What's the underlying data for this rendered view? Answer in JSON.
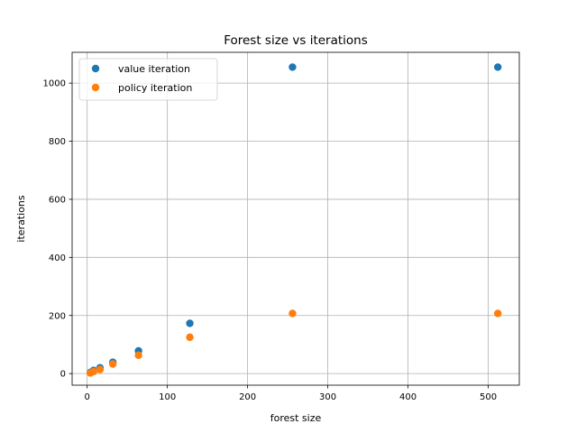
{
  "chart_data": {
    "type": "scatter",
    "title": "Forest size vs iterations",
    "xlabel": "forest size",
    "ylabel": "iterations",
    "xlim": [
      -18.75,
      538.75
    ],
    "ylim": [
      -40,
      1106
    ],
    "xticks": [
      0,
      100,
      200,
      300,
      400,
      500
    ],
    "yticks": [
      0,
      200,
      400,
      600,
      800,
      1000
    ],
    "grid": true,
    "legend_position": "upper-left",
    "series": [
      {
        "name": "value iteration",
        "color": "#1f77b4",
        "x": [
          4,
          8,
          16,
          32,
          64,
          128,
          256,
          512
        ],
        "y": [
          4,
          11,
          20,
          39,
          78,
          173,
          1055,
          1055
        ]
      },
      {
        "name": "policy iteration",
        "color": "#ff7f0e",
        "x": [
          4,
          8,
          16,
          32,
          64,
          128,
          256,
          512
        ],
        "y": [
          2,
          7,
          14,
          33,
          63,
          125,
          207,
          207
        ]
      }
    ]
  }
}
